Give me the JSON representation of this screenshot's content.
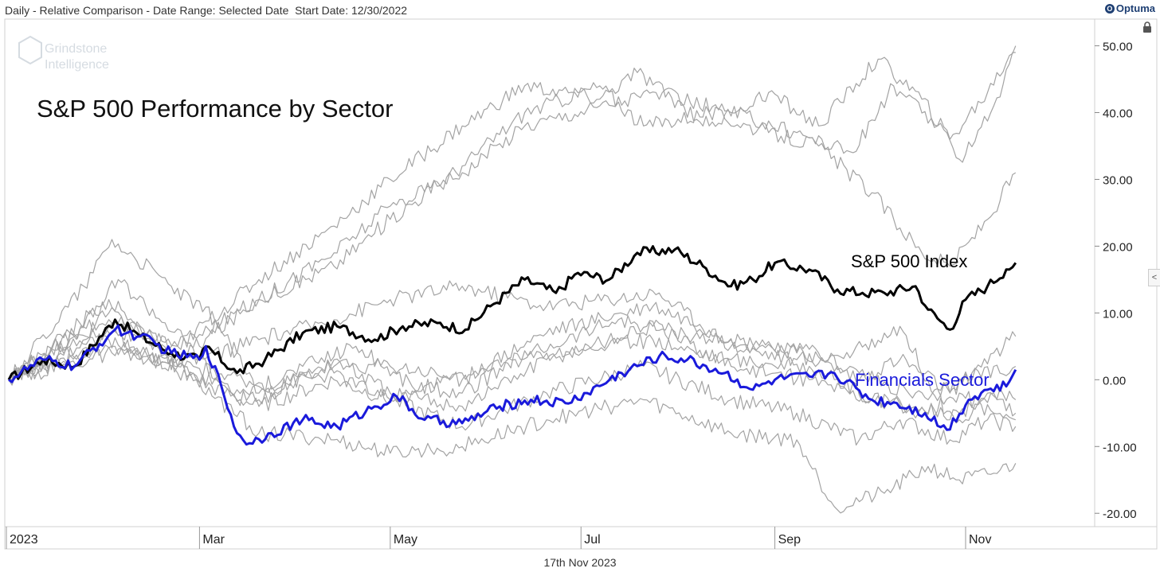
{
  "header": {
    "text": "Daily - Relative Comparison - Date Range: Selected Date  Start Date: 12/30/2022"
  },
  "brand": {
    "name": "Optuma",
    "color": "#1e3f73"
  },
  "icons": {
    "lock": "lock-icon",
    "collapse": "chevron-left-icon",
    "collapse_glyph": "<"
  },
  "watermark": {
    "line1": "Grindstone",
    "line2": "Intelligence"
  },
  "footer": {
    "date": "17th Nov 2023"
  },
  "chart_data": {
    "type": "line",
    "title": "S&P 500 Performance by Sector",
    "ylim": [
      -22,
      54
    ],
    "y_ticks": [
      "50.00",
      "40.00",
      "30.00",
      "20.00",
      "10.00",
      "0.00",
      "-10.00",
      "-20.00"
    ],
    "y_tick_values": [
      50,
      40,
      30,
      20,
      10,
      0,
      -10,
      -20
    ],
    "x_range": [
      "2022-12-30",
      "2023-12-11"
    ],
    "x_ticks": [
      {
        "label": "2023",
        "date": "2022-12-31"
      },
      {
        "label": "Mar",
        "date": "2023-03-01"
      },
      {
        "label": "May",
        "date": "2023-05-01"
      },
      {
        "label": "Jul",
        "date": "2023-07-01"
      },
      {
        "label": "Sep",
        "date": "2023-09-01"
      },
      {
        "label": "Nov",
        "date": "2023-11-01"
      }
    ],
    "colors": {
      "sector": "#a3a3a3",
      "sp500": "#000000",
      "financials": "#1a1adb"
    },
    "annotations": [
      {
        "text": "S&P 500 Index",
        "series": "S&P 500 Index",
        "color": "#000000"
      },
      {
        "text": "Financials Sector",
        "series": "Financials Sector",
        "color": "#1a1adb"
      }
    ],
    "series": [
      {
        "name": "S&P 500 Index",
        "style": "highlight",
        "color": "#000000",
        "points": [
          [
            "2022-12-30",
            0
          ],
          [
            "2023-01-10",
            3
          ],
          [
            "2023-01-20",
            2
          ],
          [
            "2023-02-02",
            9
          ],
          [
            "2023-02-10",
            6.5
          ],
          [
            "2023-02-20",
            4
          ],
          [
            "2023-03-01",
            3
          ],
          [
            "2023-03-03",
            5
          ],
          [
            "2023-03-13",
            1
          ],
          [
            "2023-03-22",
            3
          ],
          [
            "2023-04-03",
            7
          ],
          [
            "2023-04-14",
            8
          ],
          [
            "2023-04-26",
            6
          ],
          [
            "2023-05-05",
            8
          ],
          [
            "2023-05-16",
            8.5
          ],
          [
            "2023-05-25",
            7.5
          ],
          [
            "2023-06-02",
            11
          ],
          [
            "2023-06-13",
            15
          ],
          [
            "2023-06-23",
            13
          ],
          [
            "2023-06-30",
            16
          ],
          [
            "2023-07-10",
            15
          ],
          [
            "2023-07-19",
            19
          ],
          [
            "2023-07-31",
            19.5
          ],
          [
            "2023-08-09",
            17
          ],
          [
            "2023-08-18",
            14
          ],
          [
            "2023-08-25",
            15
          ],
          [
            "2023-09-01",
            17.5
          ],
          [
            "2023-09-12",
            16.5
          ],
          [
            "2023-09-21",
            13.5
          ],
          [
            "2023-09-29",
            13
          ],
          [
            "2023-10-06",
            13
          ],
          [
            "2023-10-16",
            14
          ],
          [
            "2023-10-20",
            10.5
          ],
          [
            "2023-10-27",
            7.5
          ],
          [
            "2023-11-01",
            12
          ],
          [
            "2023-11-08",
            14
          ],
          [
            "2023-11-14",
            16.5
          ],
          [
            "2023-11-17",
            17.5
          ]
        ]
      },
      {
        "name": "Financials Sector",
        "style": "highlight",
        "color": "#1a1adb",
        "points": [
          [
            "2022-12-30",
            0
          ],
          [
            "2023-01-10",
            3
          ],
          [
            "2023-01-20",
            2
          ],
          [
            "2023-02-02",
            7.5
          ],
          [
            "2023-02-10",
            6.5
          ],
          [
            "2023-02-20",
            4
          ],
          [
            "2023-03-01",
            3
          ],
          [
            "2023-03-03",
            5
          ],
          [
            "2023-03-08",
            -1
          ],
          [
            "2023-03-13",
            -8
          ],
          [
            "2023-03-17",
            -9.5
          ],
          [
            "2023-03-24",
            -8
          ],
          [
            "2023-04-03",
            -6
          ],
          [
            "2023-04-14",
            -7
          ],
          [
            "2023-04-26",
            -4
          ],
          [
            "2023-05-03",
            -2.5
          ],
          [
            "2023-05-12",
            -6
          ],
          [
            "2023-05-24",
            -6.5
          ],
          [
            "2023-06-05",
            -4
          ],
          [
            "2023-06-15",
            -3
          ],
          [
            "2023-06-26",
            -3.5
          ],
          [
            "2023-07-03",
            -2
          ],
          [
            "2023-07-14",
            1
          ],
          [
            "2023-07-26",
            3.5
          ],
          [
            "2023-08-04",
            3
          ],
          [
            "2023-08-16",
            1
          ],
          [
            "2023-08-25",
            -1.5
          ],
          [
            "2023-09-01",
            0
          ],
          [
            "2023-09-12",
            0.5
          ],
          [
            "2023-09-20",
            1
          ],
          [
            "2023-10-02",
            -3
          ],
          [
            "2023-10-10",
            -3.5
          ],
          [
            "2023-10-19",
            -5
          ],
          [
            "2023-10-26",
            -7.5
          ],
          [
            "2023-11-02",
            -3
          ],
          [
            "2023-11-08",
            -1.5
          ],
          [
            "2023-11-14",
            -1
          ],
          [
            "2023-11-17",
            1.5
          ]
        ]
      },
      {
        "name": "",
        "style": "sector",
        "points": [
          [
            "2022-12-30",
            0
          ],
          [
            "2023-01-31",
            10
          ],
          [
            "2023-02-22",
            5
          ],
          [
            "2023-03-20",
            12
          ],
          [
            "2023-04-13",
            17
          ],
          [
            "2023-05-01",
            24
          ],
          [
            "2023-05-24",
            32
          ],
          [
            "2023-06-13",
            40
          ],
          [
            "2023-07-07",
            44
          ],
          [
            "2023-07-21",
            38
          ],
          [
            "2023-08-11",
            40
          ],
          [
            "2023-08-30",
            37
          ],
          [
            "2023-09-15",
            35
          ],
          [
            "2023-10-02",
            28
          ],
          [
            "2023-10-18",
            19
          ],
          [
            "2023-10-27",
            17
          ],
          [
            "2023-11-08",
            24
          ],
          [
            "2023-11-17",
            31
          ]
        ]
      },
      {
        "name": "",
        "style": "sector",
        "points": [
          [
            "2022-12-30",
            0
          ],
          [
            "2023-01-31",
            9
          ],
          [
            "2023-02-22",
            5
          ],
          [
            "2023-03-20",
            15
          ],
          [
            "2023-04-13",
            23
          ],
          [
            "2023-05-01",
            30
          ],
          [
            "2023-05-24",
            38
          ],
          [
            "2023-06-13",
            44
          ],
          [
            "2023-07-07",
            42
          ],
          [
            "2023-07-19",
            46
          ],
          [
            "2023-08-11",
            38
          ],
          [
            "2023-08-30",
            43
          ],
          [
            "2023-09-15",
            38
          ],
          [
            "2023-10-04",
            48
          ],
          [
            "2023-10-18",
            42
          ],
          [
            "2023-10-27",
            36
          ],
          [
            "2023-11-08",
            43
          ],
          [
            "2023-11-17",
            50
          ]
        ]
      },
      {
        "name": "",
        "style": "sector",
        "points": [
          [
            "2022-12-30",
            0
          ],
          [
            "2023-01-31",
            8
          ],
          [
            "2023-02-22",
            3
          ],
          [
            "2023-03-20",
            12
          ],
          [
            "2023-04-13",
            19
          ],
          [
            "2023-05-01",
            26
          ],
          [
            "2023-05-24",
            31
          ],
          [
            "2023-06-13",
            38
          ],
          [
            "2023-07-07",
            41
          ],
          [
            "2023-07-25",
            43
          ],
          [
            "2023-08-18",
            40
          ],
          [
            "2023-09-08",
            37
          ],
          [
            "2023-09-26",
            34
          ],
          [
            "2023-10-09",
            44
          ],
          [
            "2023-10-23",
            38
          ],
          [
            "2023-10-30",
            33
          ],
          [
            "2023-11-10",
            41
          ],
          [
            "2023-11-17",
            49
          ]
        ]
      },
      {
        "name": "",
        "style": "sector",
        "points": [
          [
            "2022-12-30",
            0
          ],
          [
            "2023-01-31",
            12
          ],
          [
            "2023-02-22",
            2
          ],
          [
            "2023-03-20",
            6
          ],
          [
            "2023-04-13",
            9
          ],
          [
            "2023-05-01",
            12
          ],
          [
            "2023-05-24",
            14
          ],
          [
            "2023-06-20",
            11
          ],
          [
            "2023-07-26",
            13
          ],
          [
            "2023-08-18",
            5
          ],
          [
            "2023-09-08",
            3
          ],
          [
            "2023-09-26",
            4
          ],
          [
            "2023-10-11",
            8
          ],
          [
            "2023-10-27",
            -6
          ],
          [
            "2023-11-08",
            -2
          ],
          [
            "2023-11-17",
            -3
          ]
        ]
      },
      {
        "name": "",
        "style": "sector",
        "points": [
          [
            "2022-12-30",
            0
          ],
          [
            "2023-01-31",
            7
          ],
          [
            "2023-02-22",
            1
          ],
          [
            "2023-03-20",
            -4
          ],
          [
            "2023-04-13",
            0
          ],
          [
            "2023-05-01",
            -3
          ],
          [
            "2023-05-24",
            -7
          ],
          [
            "2023-06-20",
            -2
          ],
          [
            "2023-07-21",
            2
          ],
          [
            "2023-08-18",
            -3
          ],
          [
            "2023-09-08",
            -5
          ],
          [
            "2023-09-28",
            -9
          ],
          [
            "2023-10-11",
            -6
          ],
          [
            "2023-10-27",
            -9
          ],
          [
            "2023-11-08",
            -6
          ],
          [
            "2023-11-17",
            -7
          ]
        ]
      },
      {
        "name": "",
        "style": "sector",
        "points": [
          [
            "2022-12-30",
            0
          ],
          [
            "2023-01-31",
            6
          ],
          [
            "2023-02-22",
            2
          ],
          [
            "2023-03-20",
            -8
          ],
          [
            "2023-04-13",
            -9
          ],
          [
            "2023-05-01",
            -11
          ],
          [
            "2023-05-24",
            -10
          ],
          [
            "2023-06-20",
            -6
          ],
          [
            "2023-07-21",
            -3
          ],
          [
            "2023-08-18",
            -8
          ],
          [
            "2023-09-08",
            -9
          ],
          [
            "2023-09-20",
            -19
          ],
          [
            "2023-10-06",
            -17
          ],
          [
            "2023-10-20",
            -13
          ],
          [
            "2023-10-30",
            -15
          ],
          [
            "2023-11-10",
            -14
          ],
          [
            "2023-11-17",
            -12.5
          ]
        ]
      },
      {
        "name": "",
        "style": "sector",
        "points": [
          [
            "2022-12-30",
            0
          ],
          [
            "2023-02-01",
            5
          ],
          [
            "2023-02-27",
            1
          ],
          [
            "2023-03-20",
            -3
          ],
          [
            "2023-04-13",
            3
          ],
          [
            "2023-05-01",
            -2
          ],
          [
            "2023-05-24",
            -4
          ],
          [
            "2023-06-20",
            3
          ],
          [
            "2023-07-24",
            8
          ],
          [
            "2023-08-18",
            2
          ],
          [
            "2023-09-12",
            0
          ],
          [
            "2023-10-02",
            -3
          ],
          [
            "2023-10-20",
            -5
          ],
          [
            "2023-10-30",
            -2
          ],
          [
            "2023-11-10",
            -5
          ],
          [
            "2023-11-17",
            -6
          ]
        ]
      },
      {
        "name": "",
        "style": "sector",
        "points": [
          [
            "2022-12-30",
            0
          ],
          [
            "2023-02-01",
            4
          ],
          [
            "2023-02-27",
            2
          ],
          [
            "2023-03-20",
            -1
          ],
          [
            "2023-04-13",
            1
          ],
          [
            "2023-05-01",
            -3
          ],
          [
            "2023-05-24",
            1
          ],
          [
            "2023-06-20",
            4
          ],
          [
            "2023-07-24",
            6
          ],
          [
            "2023-08-18",
            3
          ],
          [
            "2023-09-12",
            2
          ],
          [
            "2023-10-02",
            -3
          ],
          [
            "2023-10-16",
            -4
          ],
          [
            "2023-10-30",
            -6
          ],
          [
            "2023-11-10",
            -2
          ],
          [
            "2023-11-17",
            -5
          ]
        ]
      },
      {
        "name": "",
        "style": "sector",
        "points": [
          [
            "2022-12-30",
            0
          ],
          [
            "2023-01-23",
            14
          ],
          [
            "2023-02-01",
            21
          ],
          [
            "2023-02-20",
            14
          ],
          [
            "2023-03-06",
            9
          ],
          [
            "2023-03-20",
            -2
          ],
          [
            "2023-04-13",
            2
          ],
          [
            "2023-05-01",
            2
          ],
          [
            "2023-05-24",
            0
          ],
          [
            "2023-06-20",
            7
          ],
          [
            "2023-07-24",
            11
          ],
          [
            "2023-08-18",
            6
          ],
          [
            "2023-09-08",
            4
          ],
          [
            "2023-09-28",
            0
          ],
          [
            "2023-10-11",
            3
          ],
          [
            "2023-10-27",
            -2
          ],
          [
            "2023-11-10",
            4
          ],
          [
            "2023-11-17",
            6.5
          ]
        ]
      },
      {
        "name": "",
        "style": "sector",
        "points": [
          [
            "2022-12-30",
            0
          ],
          [
            "2023-01-23",
            8
          ],
          [
            "2023-02-03",
            15
          ],
          [
            "2023-02-24",
            6
          ],
          [
            "2023-03-13",
            -3
          ],
          [
            "2023-04-03",
            2
          ],
          [
            "2023-04-20",
            5
          ],
          [
            "2023-05-08",
            -1
          ],
          [
            "2023-05-24",
            -2
          ],
          [
            "2023-06-15",
            4
          ],
          [
            "2023-07-13",
            9
          ],
          [
            "2023-08-03",
            7
          ],
          [
            "2023-08-25",
            5
          ],
          [
            "2023-09-15",
            4
          ],
          [
            "2023-10-03",
            0
          ],
          [
            "2023-10-20",
            -3
          ],
          [
            "2023-11-03",
            1
          ],
          [
            "2023-11-17",
            2
          ]
        ]
      }
    ]
  }
}
